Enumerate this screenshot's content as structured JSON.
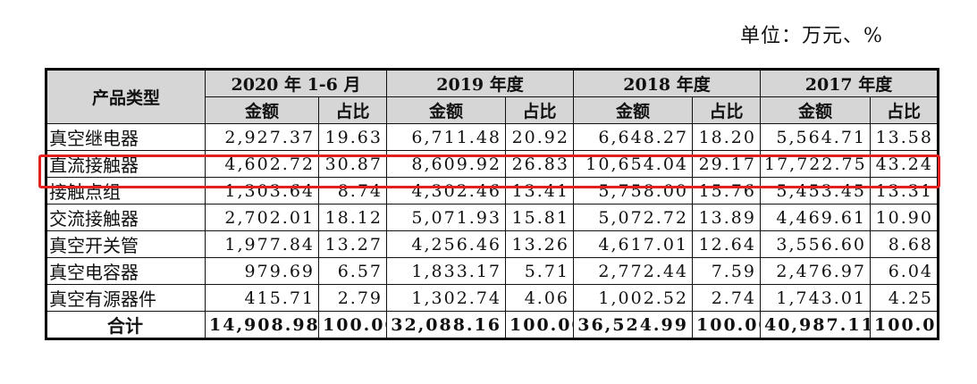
{
  "unit_label": "单位：万元、%",
  "header": {
    "product_type": "产品类型",
    "periods": [
      "2020 年 1-6 月",
      "2019 年度",
      "2018 年度",
      "2017 年度"
    ],
    "amount": "金额",
    "ratio": "占比"
  },
  "rows": [
    {
      "name": "真空继电器",
      "cells": [
        "2,927.37",
        "19.63",
        "6,711.48",
        "20.92",
        "6,648.27",
        "18.20",
        "5,564.71",
        "13.58"
      ]
    },
    {
      "name": "直流接触器",
      "cells": [
        "4,602.72",
        "30.87",
        "8,609.92",
        "26.83",
        "10,654.04",
        "29.17",
        "17,722.75",
        "43.24"
      ]
    },
    {
      "name": "接触点组",
      "cells": [
        "1,303.64",
        "8.74",
        "4,302.46",
        "13.41",
        "5,758.00",
        "15.76",
        "5,453.45",
        "13.31"
      ]
    },
    {
      "name": "交流接触器",
      "cells": [
        "2,702.01",
        "18.12",
        "5,071.93",
        "15.81",
        "5,072.72",
        "13.89",
        "4,469.61",
        "10.90"
      ]
    },
    {
      "name": "真空开关管",
      "cells": [
        "1,977.84",
        "13.27",
        "4,256.46",
        "13.26",
        "4,617.01",
        "12.64",
        "3,556.60",
        "8.68"
      ]
    },
    {
      "name": "真空电容器",
      "cells": [
        "979.69",
        "6.57",
        "1,833.17",
        "5.71",
        "2,772.44",
        "7.59",
        "2,476.97",
        "6.04"
      ]
    },
    {
      "name": "真空有源器件",
      "cells": [
        "415.71",
        "2.79",
        "1,302.74",
        "4.06",
        "1,002.52",
        "2.74",
        "1,743.01",
        "4.25"
      ]
    }
  ],
  "total": {
    "name": "合计",
    "cells": [
      "14,908.98",
      "100.00",
      "32,088.16",
      "100.00",
      "36,524.99",
      "100.00",
      "40,987.11",
      "100.00"
    ]
  }
}
